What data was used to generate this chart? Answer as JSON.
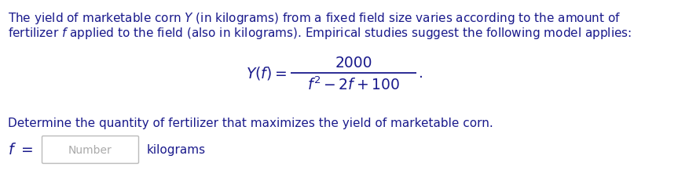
{
  "bg_color": "#ffffff",
  "text_color": "#1a1a8c",
  "line1": "The yield of marketable corn $\\mathit{Y}$ (in kilograms) from a fixed field size varies according to the amount of",
  "line2": "fertilizer $\\mathit{f}$ applied to the field (also in kilograms). Empirical studies suggest the following model applies:",
  "numerator": "2000",
  "denominator": "$\\mathit{f}^2 - 2\\mathit{f} + 100$",
  "lhs": "$\\mathit{Y}(\\mathit{f}) =$",
  "period": ".",
  "determine_text": "Determine the quantity of fertilizer that maximizes the yield of marketable corn.",
  "f_label": "$\\mathit{f}$ $=$",
  "placeholder_text": "Number",
  "unit_text": "kilograms",
  "text_color_placeholder": "#aaaaaa",
  "box_edge_color": "#bbbbbb",
  "fs_body": 11.0,
  "fs_formula": 13.5,
  "fs_placeholder": 10.0,
  "fig_width": 8.63,
  "fig_height": 2.32,
  "dpi": 100
}
